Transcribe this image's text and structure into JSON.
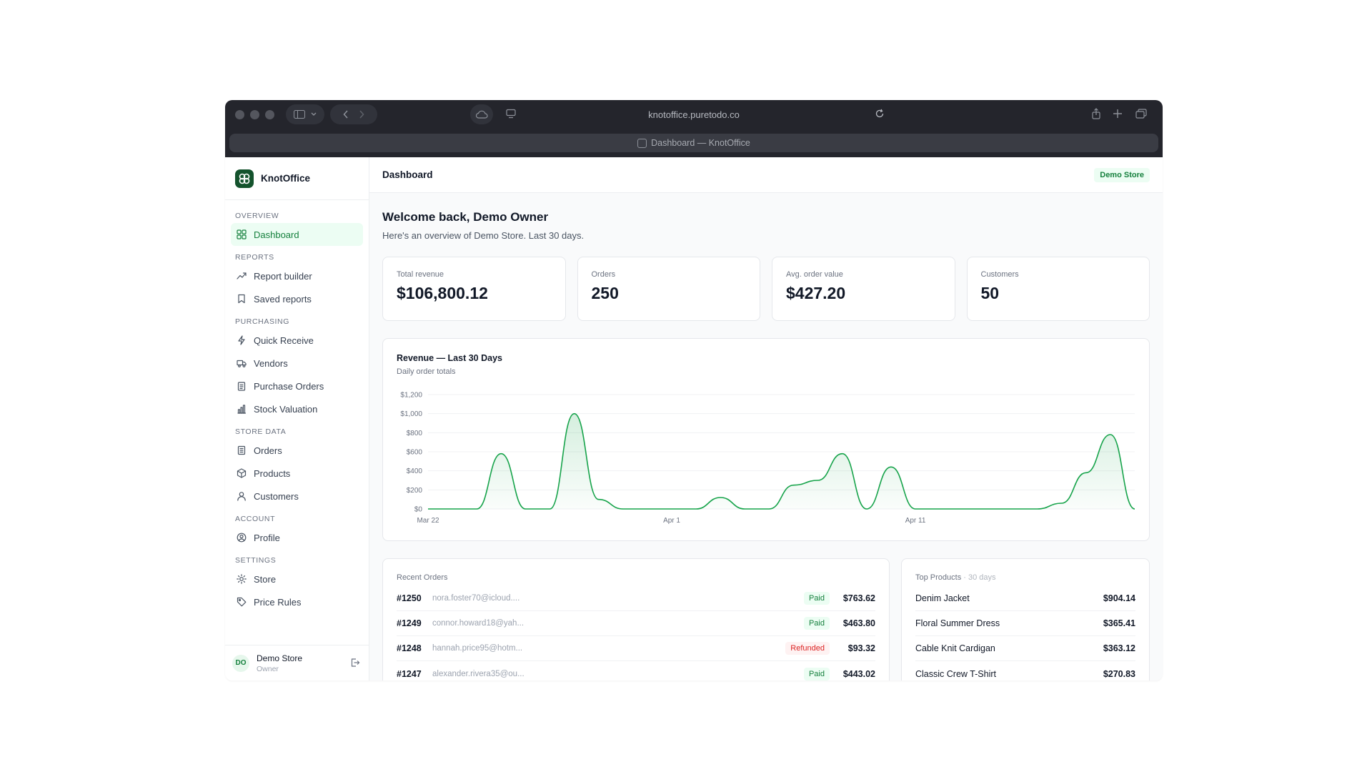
{
  "browser": {
    "url": "knotoffice.puretodo.co",
    "tab_title": "Dashboard — KnotOffice"
  },
  "sidebar": {
    "brand": "KnotOffice",
    "sections": [
      {
        "label": "Overview",
        "items": [
          {
            "label": "Dashboard",
            "icon": "grid-icon",
            "active": true
          }
        ]
      },
      {
        "label": "Reports",
        "items": [
          {
            "label": "Report builder",
            "icon": "trend-icon"
          },
          {
            "label": "Saved reports",
            "icon": "bookmark-icon"
          }
        ]
      },
      {
        "label": "Purchasing",
        "items": [
          {
            "label": "Quick Receive",
            "icon": "bolt-icon"
          },
          {
            "label": "Vendors",
            "icon": "truck-icon"
          },
          {
            "label": "Purchase Orders",
            "icon": "clipboard-icon"
          },
          {
            "label": "Stock Valuation",
            "icon": "bar-chart-icon"
          }
        ]
      },
      {
        "label": "Store Data",
        "items": [
          {
            "label": "Orders",
            "icon": "receipt-icon"
          },
          {
            "label": "Products",
            "icon": "box-icon"
          },
          {
            "label": "Customers",
            "icon": "user-icon"
          }
        ]
      },
      {
        "label": "Account",
        "items": [
          {
            "label": "Profile",
            "icon": "profile-icon"
          }
        ]
      },
      {
        "label": "Settings",
        "items": [
          {
            "label": "Store",
            "icon": "sun-icon"
          },
          {
            "label": "Price Rules",
            "icon": "tag-icon"
          }
        ]
      }
    ],
    "user": {
      "initials": "DO",
      "name": "Demo Store",
      "role": "Owner"
    }
  },
  "header": {
    "title": "Dashboard",
    "store_badge": "Demo Store"
  },
  "welcome": {
    "title": "Welcome back, Demo Owner",
    "subtitle": "Here's an overview of Demo Store. Last 30 days."
  },
  "kpis": [
    {
      "label": "Total revenue",
      "value": "$106,800.12"
    },
    {
      "label": "Orders",
      "value": "250"
    },
    {
      "label": "Avg. order value",
      "value": "$427.20"
    },
    {
      "label": "Customers",
      "value": "50"
    }
  ],
  "chart_data": {
    "type": "area",
    "title": "Revenue — Last 30 Days",
    "subtitle": "Daily order totals",
    "x_ticks": [
      {
        "day": 0,
        "label": "Mar 22"
      },
      {
        "day": 10,
        "label": "Apr 1"
      },
      {
        "day": 20,
        "label": "Apr 11"
      }
    ],
    "y_ticks": [
      "$0",
      "$200",
      "$400",
      "$600",
      "$800",
      "$1,000",
      "$1,200"
    ],
    "ylim": [
      0,
      1200
    ],
    "days": 30,
    "values": [
      0,
      0,
      0,
      580,
      0,
      0,
      1000,
      100,
      0,
      0,
      0,
      0,
      120,
      0,
      0,
      250,
      300,
      580,
      0,
      440,
      0,
      0,
      0,
      0,
      0,
      0,
      60,
      380,
      780,
      0
    ],
    "color": "#16a34a"
  },
  "recent_orders": {
    "title": "Recent Orders",
    "rows": [
      {
        "id": "#1250",
        "email": "nora.foster70@icloud....",
        "status": "Paid",
        "amount": "$763.62"
      },
      {
        "id": "#1249",
        "email": "connor.howard18@yah...",
        "status": "Paid",
        "amount": "$463.80"
      },
      {
        "id": "#1248",
        "email": "hannah.price95@hotm...",
        "status": "Refunded",
        "amount": "$93.32"
      },
      {
        "id": "#1247",
        "email": "alexander.rivera35@ou...",
        "status": "Paid",
        "amount": "$443.02"
      }
    ]
  },
  "top_products": {
    "title": "Top Products",
    "range": "· 30 days",
    "rows": [
      {
        "name": "Denim Jacket",
        "value": "$904.14"
      },
      {
        "name": "Floral Summer Dress",
        "value": "$365.41"
      },
      {
        "name": "Cable Knit Cardigan",
        "value": "$363.12"
      },
      {
        "name": "Classic Crew T-Shirt",
        "value": "$270.83"
      }
    ]
  }
}
